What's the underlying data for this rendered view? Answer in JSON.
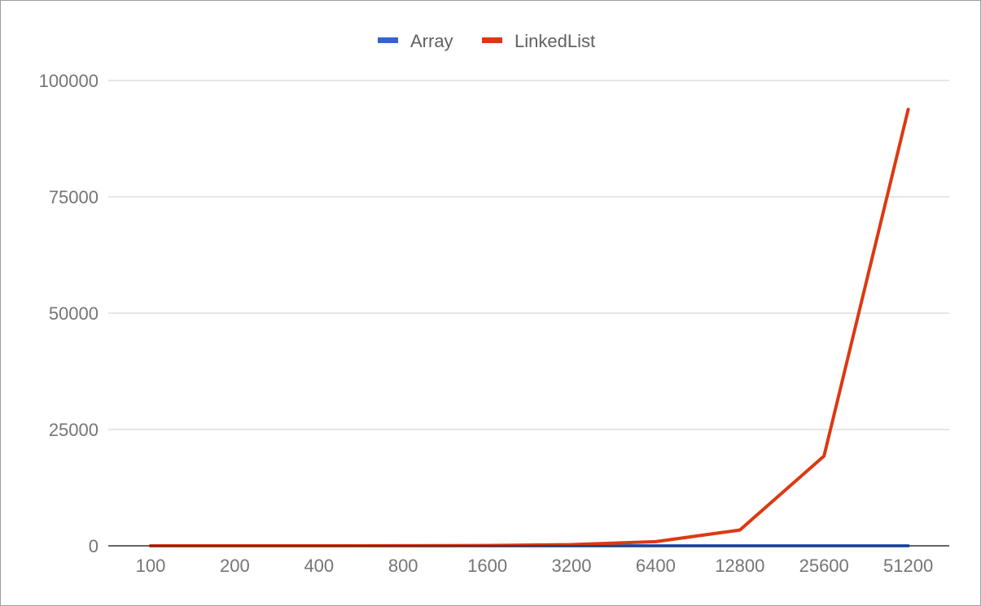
{
  "chart_data": {
    "type": "line",
    "title": "",
    "xlabel": "",
    "ylabel": "",
    "categories": [
      "100",
      "200",
      "400",
      "800",
      "1600",
      "3200",
      "6400",
      "12800",
      "25600",
      "51200"
    ],
    "series": [
      {
        "name": "Array",
        "color": "#3366cc",
        "values": [
          0,
          0,
          0,
          0,
          0,
          0,
          0,
          0,
          0,
          0
        ]
      },
      {
        "name": "LinkedList",
        "color": "#dc3912",
        "values": [
          0,
          0,
          5,
          20,
          70,
          260,
          900,
          3400,
          19300,
          93800
        ]
      }
    ],
    "ylim": [
      0,
      100000
    ],
    "yticks": [
      "0",
      "25000",
      "50000",
      "75000",
      "100000"
    ],
    "ytick_values": [
      0,
      25000,
      50000,
      75000,
      100000
    ],
    "grid": true,
    "legend_position": "top-center",
    "gridline_color": "#cccccc",
    "axis_color": "#333333"
  }
}
